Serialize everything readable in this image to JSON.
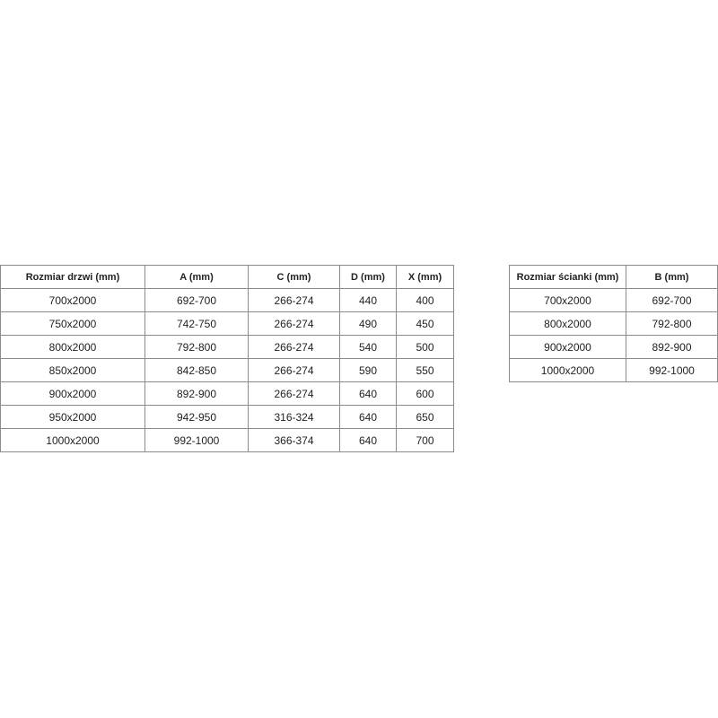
{
  "doors_table": {
    "headers": [
      "Rozmiar drzwi (mm)",
      "A (mm)",
      "C (mm)",
      "D (mm)",
      "X (mm)"
    ],
    "rows": [
      [
        "700x2000",
        "692-700",
        "266-274",
        "440",
        "400"
      ],
      [
        "750x2000",
        "742-750",
        "266-274",
        "490",
        "450"
      ],
      [
        "800x2000",
        "792-800",
        "266-274",
        "540",
        "500"
      ],
      [
        "850x2000",
        "842-850",
        "266-274",
        "590",
        "550"
      ],
      [
        "900x2000",
        "892-900",
        "266-274",
        "640",
        "600"
      ],
      [
        "950x2000",
        "942-950",
        "316-324",
        "640",
        "650"
      ],
      [
        "1000x2000",
        "992-1000",
        "366-374",
        "640",
        "700"
      ]
    ]
  },
  "wall_table": {
    "headers": [
      "Rozmiar ścianki (mm)",
      "B (mm)"
    ],
    "rows": [
      [
        "700x2000",
        "692-700"
      ],
      [
        "800x2000",
        "792-800"
      ],
      [
        "900x2000",
        "892-900"
      ],
      [
        "1000x2000",
        "992-1000"
      ]
    ]
  }
}
